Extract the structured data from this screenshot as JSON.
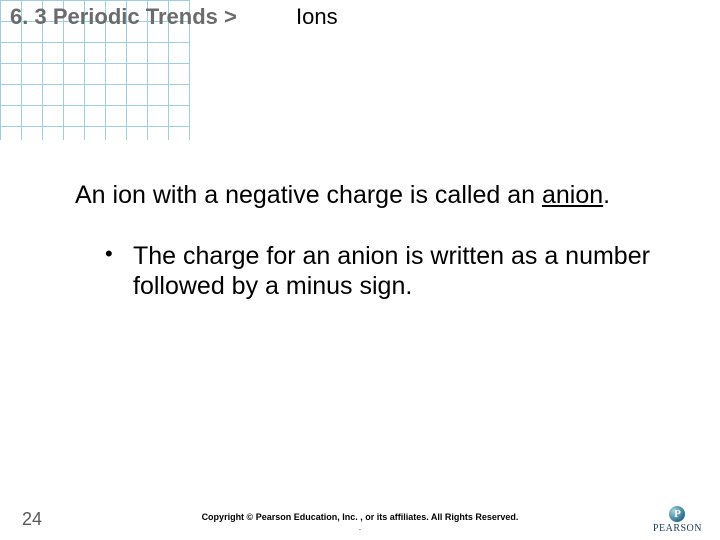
{
  "header": {
    "chapter": "6. 3",
    "topic": "Periodic Trends",
    "separator": ">",
    "section": "Ions"
  },
  "body": {
    "statement_pre": "An ion with a negative charge is called an ",
    "statement_underlined": "anion",
    "statement_post": ".",
    "bullet1": "The charge for an anion is written as a number followed by a minus sign."
  },
  "footer": {
    "page_number": "24",
    "copyright": "Copyright © Pearson Education, Inc. , or its affiliates. All Rights Reserved.",
    "copyright_sub": ".",
    "logo_text": "PEARSON",
    "logo_letter": "P"
  },
  "style": {
    "grid_color": "#4fa8c8",
    "header_color": "#6b6b6b",
    "body_fontsize": 25,
    "background": "#ffffff"
  }
}
